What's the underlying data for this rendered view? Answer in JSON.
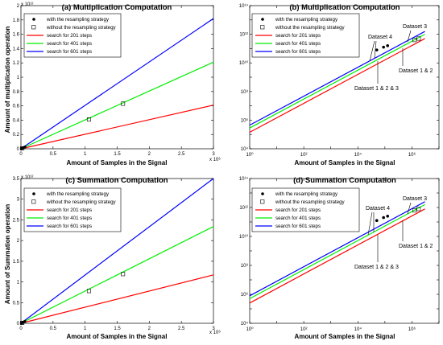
{
  "chart_data": [
    {
      "type": "line",
      "title": "(a) Multiplication Computation",
      "xlabel": "Amount of Samples in the Signal",
      "ylabel": "Amount of multiplication operation",
      "x_exponent": "x 10⁶",
      "y_exponent": "x 10¹²",
      "xscale": "linear",
      "yscale": "linear",
      "xlim": [
        0,
        3
      ],
      "ylim": [
        0,
        2
      ],
      "xticks": [
        "0",
        "0.5",
        "1",
        "1.5",
        "2",
        "2.5",
        "3"
      ],
      "yticks": [
        "0",
        "0.2",
        "0.4",
        "0.6",
        "0.8",
        "1",
        "1.2",
        "1.4",
        "1.6",
        "1.8",
        "2"
      ],
      "series": [
        {
          "name": "search for 201 steps",
          "color": "#ff0000",
          "x": [
            0,
            3
          ],
          "y": [
            0,
            0.61
          ]
        },
        {
          "name": "search for 401 steps",
          "color": "#00ee00",
          "x": [
            0,
            3
          ],
          "y": [
            0,
            1.21
          ]
        },
        {
          "name": "search for 601 steps",
          "color": "#0000ff",
          "x": [
            0,
            3
          ],
          "y": [
            0,
            1.82
          ]
        }
      ],
      "markers_filled": {
        "name": "with the resampling strategy",
        "x": [
          0.01,
          0.03,
          0.06
        ],
        "y": [
          0.003,
          0.012,
          0.025
        ]
      },
      "markers_open": {
        "name": "without the resampling strategy",
        "x": [
          0.02,
          1.06,
          1.59
        ],
        "y": [
          0.006,
          0.41,
          0.63
        ]
      },
      "legend_placement": "top-left",
      "grid": false
    },
    {
      "type": "line",
      "title": "(b) Multiplication Computation",
      "xlabel": "Amount of Samples in the Signal",
      "ylabel": "",
      "xscale": "log",
      "yscale": "log",
      "xlim_exp": [
        0,
        7
      ],
      "ylim_exp": [
        4,
        14
      ],
      "xticks_exp": [
        0,
        2,
        4,
        6
      ],
      "yticks_exp": [
        4,
        6,
        8,
        10,
        12,
        14
      ],
      "series": [
        {
          "name": "search for 201 steps",
          "color": "#ff0000",
          "x_exp": [
            0,
            6.48
          ],
          "y_exp": [
            5.15,
            11.7
          ]
        },
        {
          "name": "search for 401 steps",
          "color": "#00ee00",
          "x_exp": [
            0,
            6.48
          ],
          "y_exp": [
            5.45,
            12.0
          ]
        },
        {
          "name": "search for 601 steps",
          "color": "#0000ff",
          "x_exp": [
            0,
            6.48
          ],
          "y_exp": [
            5.65,
            12.2
          ]
        }
      ],
      "markers_filled": {
        "name": "with the resampling strategy",
        "x_exp": [
          4.7,
          4.95,
          5.1
        ],
        "y_exp": [
          10.9,
          11.1,
          11.2
        ]
      },
      "markers_open": {
        "name": "without the resampling strategy",
        "x_exp": [
          6.1,
          6.25
        ],
        "y_exp": [
          11.6,
          11.7
        ]
      },
      "legend_placement": "top-left",
      "annotations": [
        "Dataset 4",
        "Dataset 3",
        "Dataset 1 & 2",
        "Dataset 1 & 2 & 3"
      ]
    },
    {
      "type": "line",
      "title": "(c) Summation Computation",
      "xlabel": "Amount of Samples in the Signal",
      "ylabel": "Amount of Summation operation",
      "x_exponent": "x 10⁶",
      "y_exponent": "x 10¹²",
      "xscale": "linear",
      "yscale": "linear",
      "xlim": [
        0,
        3
      ],
      "ylim": [
        0,
        3.5
      ],
      "xticks": [
        "0",
        "0.5",
        "1",
        "1.5",
        "2",
        "2.5",
        "3"
      ],
      "yticks": [
        "0",
        "0.5",
        "1",
        "1.5",
        "2",
        "2.5",
        "3",
        "3.5"
      ],
      "series": [
        {
          "name": "search for 201 steps",
          "color": "#ff0000",
          "x": [
            0,
            3
          ],
          "y": [
            0,
            1.17
          ]
        },
        {
          "name": "search for 401 steps",
          "color": "#00ee00",
          "x": [
            0,
            3
          ],
          "y": [
            0,
            2.34
          ]
        },
        {
          "name": "search for 601 steps",
          "color": "#0000ff",
          "x": [
            0,
            3
          ],
          "y": [
            0,
            3.5
          ]
        }
      ],
      "markers_filled": {
        "name": "with the resampling strategy",
        "x": [
          0.01,
          0.03,
          0.06
        ],
        "y": [
          0.005,
          0.02,
          0.045
        ]
      },
      "markers_open": {
        "name": "without the resampling strategy",
        "x": [
          0.02,
          1.06,
          1.59
        ],
        "y": [
          0.01,
          0.78,
          1.19
        ]
      },
      "legend_placement": "top-left",
      "grid": false
    },
    {
      "type": "line",
      "title": "(d) Summation Computation",
      "xlabel": "Amount of Samples in the Signal",
      "ylabel": "",
      "xscale": "log",
      "yscale": "log",
      "xlim_exp": [
        0,
        7
      ],
      "ylim_exp": [
        4,
        14
      ],
      "xticks_exp": [
        0,
        2,
        4,
        6
      ],
      "yticks_exp": [
        4,
        6,
        8,
        10,
        12,
        14
      ],
      "series": [
        {
          "name": "search for 201 steps",
          "color": "#ff0000",
          "x_exp": [
            0,
            6.48
          ],
          "y_exp": [
            5.4,
            11.9
          ]
        },
        {
          "name": "search for 401 steps",
          "color": "#00ee00",
          "x_exp": [
            0,
            6.48
          ],
          "y_exp": [
            5.7,
            12.2
          ]
        },
        {
          "name": "search for 601 steps",
          "color": "#0000ff",
          "x_exp": [
            0,
            6.48
          ],
          "y_exp": [
            5.9,
            12.4
          ]
        }
      ],
      "markers_filled": {
        "name": "with the resampling strategy",
        "x_exp": [
          4.7,
          4.95,
          5.1
        ],
        "y_exp": [
          11.1,
          11.3,
          11.4
        ]
      },
      "markers_open": {
        "name": "without the resampling strategy",
        "x_exp": [
          6.1,
          6.25
        ],
        "y_exp": [
          11.8,
          11.9
        ]
      },
      "legend_placement": "top-left",
      "annotations": [
        "Dataset 4",
        "Dataset 3",
        "Dataset 1 & 2",
        "Dataset 1 & 2 & 3"
      ]
    }
  ]
}
